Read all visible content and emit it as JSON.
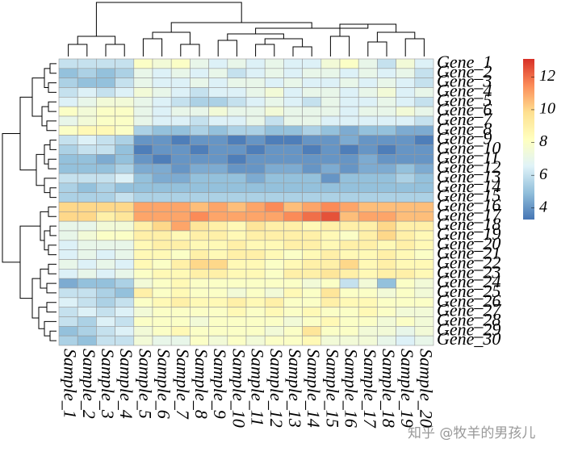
{
  "chart_data": {
    "type": "heatmap",
    "rows": [
      "Gene_1",
      "Gene_2",
      "Gene_3",
      "Gene_4",
      "Gene_5",
      "Gene_6",
      "Gene_7",
      "Gene_8",
      "Gene_9",
      "Gene_10",
      "Gene_11",
      "Gene_12",
      "Gene_13",
      "Gene_14",
      "Gene_15",
      "Gene_16",
      "Gene_17",
      "Gene_18",
      "Gene_19",
      "Gene_20",
      "Gene_21",
      "Gene_22",
      "Gene_23",
      "Gene_24",
      "Gene_25",
      "Gene_26",
      "Gene_27",
      "Gene_28",
      "Gene_29",
      "Gene_30"
    ],
    "columns": [
      "Sample_1",
      "Sample_2",
      "Sample_3",
      "Sample_4",
      "Sample_5",
      "Sample_6",
      "Sample_7",
      "Sample_8",
      "Sample_9",
      "Sample_10",
      "Sample_11",
      "Sample_12",
      "Sample_13",
      "Sample_14",
      "Sample_15",
      "Sample_16",
      "Sample_17",
      "Sample_18",
      "Sample_19",
      "Sample_20"
    ],
    "values": [
      [
        6,
        6,
        6,
        6,
        8,
        7.5,
        8,
        7,
        6.5,
        7,
        6.5,
        7,
        6.5,
        6.5,
        7.5,
        8,
        7,
        6,
        7.5,
        6.5
      ],
      [
        5,
        5.5,
        5,
        5.5,
        7,
        6.5,
        7,
        6.5,
        7,
        6,
        6.5,
        7,
        6.5,
        7,
        7,
        6.5,
        7,
        6.5,
        7,
        6
      ],
      [
        5.5,
        5,
        5,
        6,
        7,
        6.5,
        6.5,
        7,
        6.5,
        7,
        7,
        6.5,
        7,
        6.5,
        6.5,
        7,
        6.5,
        7,
        6.5,
        6
      ],
      [
        6,
        6.5,
        6,
        6.5,
        7.5,
        7,
        6.5,
        6,
        6.5,
        6.5,
        7,
        7.5,
        6.5,
        7,
        7,
        6.5,
        7,
        7.5,
        6.5,
        7
      ],
      [
        6.5,
        7,
        7.5,
        7.5,
        7,
        6.5,
        6,
        5.5,
        5.5,
        6,
        6.5,
        7,
        6.5,
        6,
        7,
        6.5,
        6.5,
        7,
        6.5,
        6
      ],
      [
        8,
        7.5,
        8,
        8,
        7,
        6.5,
        7,
        7,
        7.5,
        7,
        7,
        7.5,
        7,
        7,
        7,
        6.5,
        7,
        7,
        7.5,
        7
      ],
      [
        7,
        7.5,
        8,
        8,
        7,
        6.5,
        6.5,
        6,
        6.5,
        6.5,
        7,
        6,
        7,
        7,
        6.5,
        6.5,
        6.5,
        6.5,
        6.5,
        6
      ],
      [
        8,
        8.5,
        8.5,
        8,
        5.5,
        5,
        5,
        5.5,
        5,
        5.5,
        5.5,
        5,
        5,
        5.5,
        5,
        4.5,
        5,
        5,
        4.5,
        4.5
      ],
      [
        6,
        6.5,
        6,
        5.5,
        4,
        4,
        3.5,
        4,
        4,
        3.5,
        4,
        3.5,
        3.5,
        4,
        4,
        4.5,
        4,
        4,
        4,
        3.5
      ],
      [
        5.5,
        6,
        6,
        5,
        3.5,
        4,
        4,
        3.5,
        4,
        4,
        3.5,
        4,
        4,
        3.5,
        4,
        3.5,
        4,
        3.5,
        4,
        4
      ],
      [
        5,
        5,
        4.5,
        5,
        4,
        3.5,
        4,
        4,
        4,
        3.5,
        4,
        4,
        4,
        4,
        4,
        4,
        4.5,
        4,
        4,
        4
      ],
      [
        5,
        5,
        5,
        5.5,
        4.5,
        4.5,
        4,
        4.5,
        4.5,
        4,
        4,
        4.5,
        4.5,
        4,
        4.5,
        4,
        4.5,
        4.5,
        5,
        4.5
      ],
      [
        6,
        6,
        6,
        6.5,
        5,
        4.5,
        4.5,
        5,
        5,
        5,
        4.5,
        5,
        5,
        5,
        4,
        5,
        5,
        5,
        5.5,
        5
      ],
      [
        5.5,
        5,
        5.5,
        5,
        5,
        5,
        5,
        5,
        5,
        5,
        5,
        5,
        5,
        5,
        5,
        5,
        5,
        5,
        5,
        5
      ],
      [
        5.5,
        5.5,
        5.5,
        6,
        5.5,
        5.5,
        5.5,
        5.5,
        5.5,
        5.5,
        5.5,
        5.5,
        5.5,
        5.5,
        5.5,
        5.5,
        5.5,
        5.5,
        5.5,
        5.5
      ],
      [
        10,
        10,
        10,
        10,
        11,
        11,
        11,
        10.5,
        11,
        10.5,
        11,
        11.5,
        10.5,
        11,
        11.5,
        11,
        10.5,
        10.5,
        10.5,
        10.5
      ],
      [
        10,
        10,
        9,
        9.5,
        11,
        11,
        11,
        11.5,
        11,
        11,
        11,
        11,
        11.5,
        12,
        12.5,
        10.5,
        11,
        11,
        10.5,
        10.5
      ],
      [
        7,
        7,
        7.5,
        7.5,
        9,
        10,
        11,
        9.5,
        9,
        8.5,
        9.5,
        9,
        9,
        8.5,
        9,
        9,
        9,
        10,
        9,
        9
      ],
      [
        7,
        7.5,
        8,
        8,
        9,
        9,
        8.5,
        9,
        9,
        8.5,
        9,
        9,
        9,
        9,
        8.5,
        8,
        9,
        10,
        9,
        8.5
      ],
      [
        6.5,
        7,
        7,
        7,
        8.5,
        9,
        9,
        8.5,
        8.5,
        9,
        8.5,
        8.5,
        9,
        9,
        8.5,
        9,
        9,
        8.5,
        9,
        8.5
      ],
      [
        6.5,
        7,
        6.5,
        7,
        8.5,
        8.5,
        8,
        9,
        8.5,
        9,
        9,
        8.5,
        8,
        8.5,
        9,
        8.5,
        8.5,
        9,
        8.5,
        8
      ],
      [
        7,
        6.5,
        7,
        6.5,
        8.5,
        8,
        9,
        10,
        10,
        8.5,
        8.5,
        8,
        8.5,
        9,
        9,
        10,
        8.5,
        9,
        8.5,
        8.5
      ],
      [
        6.5,
        7,
        6.5,
        7,
        8,
        8.5,
        8.5,
        9,
        9,
        8.5,
        8.5,
        8,
        9,
        9,
        9.5,
        9,
        8.5,
        9,
        9,
        8.5
      ],
      [
        4.5,
        5,
        5,
        5.5,
        7.5,
        8,
        8.5,
        8,
        8,
        8,
        8,
        8,
        8,
        7.5,
        8,
        6,
        7.5,
        5,
        8,
        7.5
      ],
      [
        6,
        6,
        5.5,
        5,
        9,
        8,
        8.5,
        8,
        8,
        7.5,
        8,
        7.5,
        8.5,
        8,
        9.5,
        8,
        8,
        7.5,
        8,
        7.5
      ],
      [
        6.5,
        6,
        5.5,
        6,
        8,
        8.5,
        9,
        8.5,
        8.5,
        9,
        8.5,
        9,
        8,
        8,
        9,
        8.5,
        8.5,
        8,
        8,
        8
      ],
      [
        6,
        6.5,
        6,
        6.5,
        7.5,
        8,
        8,
        8,
        8,
        8.5,
        8,
        8.5,
        8,
        8.5,
        8,
        8,
        8.5,
        8,
        7.5,
        7.5
      ],
      [
        6,
        5.5,
        6.5,
        6,
        8,
        8,
        8,
        7.5,
        8,
        8,
        8,
        8,
        7.5,
        8,
        8.5,
        8,
        8,
        7.5,
        8,
        7.5
      ],
      [
        5,
        5.5,
        6,
        6.5,
        7.5,
        8,
        8.5,
        8,
        8,
        8,
        8,
        7.5,
        8,
        9.5,
        8,
        8,
        7.5,
        7.5,
        7,
        7.5
      ],
      [
        5.5,
        5,
        6,
        6,
        7.5,
        7,
        7,
        8,
        7.5,
        8,
        7.5,
        8,
        8,
        8.5,
        7.5,
        7.5,
        7.5,
        7,
        6.5,
        7
      ]
    ],
    "colors": [
      "#4575B4",
      "#91BFDB",
      "#E0F3F8",
      "#FFFFBF",
      "#FEE090",
      "#FC8D59",
      "#D73027"
    ],
    "zlim": [
      3.3,
      13.1
    ],
    "colorbar_ticks": [
      4,
      6,
      8,
      10,
      12
    ],
    "watermark": "知乎 @牧羊的男孩儿"
  }
}
